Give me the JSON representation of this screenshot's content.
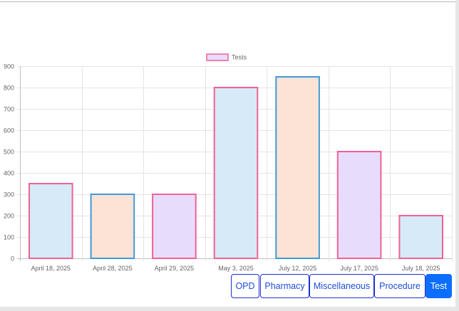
{
  "chart_data": {
    "type": "bar",
    "categories": [
      "April 18, 2025",
      "April 28, 2025",
      "April 29, 2025",
      "May 3, 2025",
      "July 12, 2025",
      "July 17, 2025",
      "July 18, 2025"
    ],
    "series": [
      {
        "name": "Tests",
        "values": [
          350,
          300,
          300,
          800,
          850,
          500,
          200
        ]
      }
    ],
    "ylim": [
      0,
      900
    ],
    "yticks": [
      0,
      100,
      200,
      300,
      400,
      500,
      600,
      700,
      800,
      900
    ],
    "grid": true,
    "legend_position": "top-center",
    "bar_fill_colors": [
      "#d6eaf8",
      "#fde3d5",
      "#e8dcfd",
      "#d6eaf8",
      "#fde3d5",
      "#e8dcfd",
      "#d6eaf8"
    ],
    "bar_border_colors": [
      "#f06292",
      "#3f9ad8",
      "#f06292",
      "#f06292",
      "#3f9ad8",
      "#f06292",
      "#f06292"
    ],
    "legend_swatch_fill": "#e8dcfd",
    "legend_swatch_border": "#f06292"
  },
  "tabs": [
    {
      "label": "OPD",
      "active": false
    },
    {
      "label": "Pharmacy",
      "active": false
    },
    {
      "label": "Miscellaneous",
      "active": false
    },
    {
      "label": "Procedure",
      "active": false
    },
    {
      "label": "Test",
      "active": true
    }
  ]
}
